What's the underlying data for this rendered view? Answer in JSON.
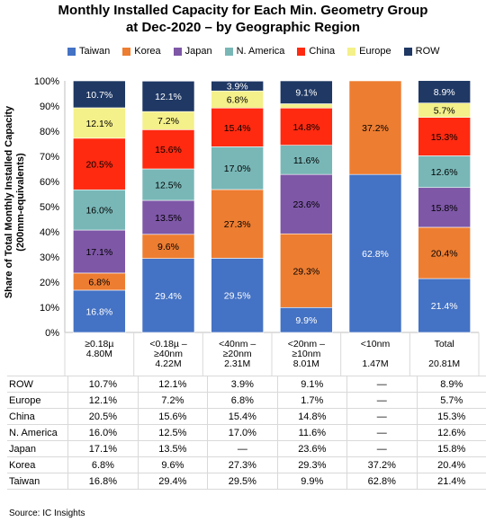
{
  "chart_data": {
    "type": "bar",
    "stacked": true,
    "title_line1": "Monthly Installed Capacity for Each Min. Geometry Group",
    "title_line2": "at Dec-2020 – by Geographic Region",
    "ylabel_line1": "Share of Total Monthly Installed Capacity",
    "ylabel_line2": "(200mm-equivalents)",
    "ylim": [
      0,
      100
    ],
    "yticks": [
      "0%",
      "10%",
      "20%",
      "30%",
      "40%",
      "50%",
      "60%",
      "70%",
      "80%",
      "90%",
      "100%"
    ],
    "grid": false,
    "legend_position": "top",
    "categories": [
      {
        "line1": "≥0.18µ",
        "line2": "",
        "line3": "4.80M"
      },
      {
        "line1": "<0.18µ –",
        "line2": "≥40nm",
        "line3": "4.22M"
      },
      {
        "line1": "<40nm –",
        "line2": "≥20nm",
        "line3": "2.31M"
      },
      {
        "line1": "<20nm –",
        "line2": "≥10nm",
        "line3": "8.01M"
      },
      {
        "line1": "<10nm",
        "line2": "",
        "line3": "1.47M"
      },
      {
        "line1": "Total",
        "line2": "",
        "line3": "20.81M"
      }
    ],
    "series": [
      {
        "name": "Taiwan",
        "color": "#4472c4",
        "values": [
          16.8,
          29.4,
          29.5,
          9.9,
          62.8,
          21.4
        ]
      },
      {
        "name": "Korea",
        "color": "#ed7d31",
        "values": [
          6.8,
          9.6,
          27.3,
          29.3,
          37.2,
          20.4
        ]
      },
      {
        "name": "Japan",
        "color": "#7e57a7",
        "values": [
          17.1,
          13.5,
          0,
          23.6,
          0,
          15.8
        ]
      },
      {
        "name": "N. America",
        "color": "#79b7b7",
        "values": [
          16.0,
          12.5,
          17.0,
          11.6,
          0,
          12.6
        ]
      },
      {
        "name": "China",
        "color": "#ff2a10",
        "values": [
          20.5,
          15.6,
          15.4,
          14.8,
          0,
          15.3
        ]
      },
      {
        "name": "Europe",
        "color": "#f4f08a",
        "values": [
          12.1,
          7.2,
          6.8,
          1.7,
          0,
          5.7
        ]
      },
      {
        "name": "ROW",
        "color": "#1f3864",
        "values": [
          10.7,
          12.1,
          3.9,
          9.1,
          0,
          8.9
        ]
      }
    ],
    "bar_labels": [
      [
        "16.8%",
        "6.8%",
        "17.1%",
        "16.0%",
        "20.5%",
        "12.1%",
        "10.7%"
      ],
      [
        "29.4%",
        "9.6%",
        "13.5%",
        "12.5%",
        "15.6%",
        "7.2%",
        "12.1%"
      ],
      [
        "29.5%",
        "27.3%",
        "",
        "17.0%",
        "15.4%",
        "6.8%",
        "3.9%"
      ],
      [
        "9.9%",
        "29.3%",
        "23.6%",
        "11.6%",
        "14.8%",
        "",
        "9.1%"
      ],
      [
        "62.8%",
        "37.2%",
        "",
        "",
        "",
        "",
        ""
      ],
      [
        "21.4%",
        "20.4%",
        "15.8%",
        "12.6%",
        "15.3%",
        "5.7%",
        "8.9%"
      ]
    ],
    "table_rows": [
      {
        "label": "ROW",
        "cells": [
          "10.7%",
          "12.1%",
          "3.9%",
          "9.1%",
          "—",
          "8.9%"
        ]
      },
      {
        "label": "Europe",
        "cells": [
          "12.1%",
          "7.2%",
          "6.8%",
          "1.7%",
          "—",
          "5.7%"
        ]
      },
      {
        "label": "China",
        "cells": [
          "20.5%",
          "15.6%",
          "15.4%",
          "14.8%",
          "—",
          "15.3%"
        ]
      },
      {
        "label": "N. America",
        "cells": [
          "16.0%",
          "12.5%",
          "17.0%",
          "11.6%",
          "—",
          "12.6%"
        ]
      },
      {
        "label": "Japan",
        "cells": [
          "17.1%",
          "13.5%",
          "—",
          "23.6%",
          "—",
          "15.8%"
        ]
      },
      {
        "label": "Korea",
        "cells": [
          "6.8%",
          "9.6%",
          "27.3%",
          "29.3%",
          "37.2%",
          "20.4%"
        ]
      },
      {
        "label": "Taiwan",
        "cells": [
          "16.8%",
          "29.4%",
          "29.5%",
          "9.9%",
          "62.8%",
          "21.4%"
        ]
      }
    ],
    "source": "Source:  IC Insights"
  }
}
